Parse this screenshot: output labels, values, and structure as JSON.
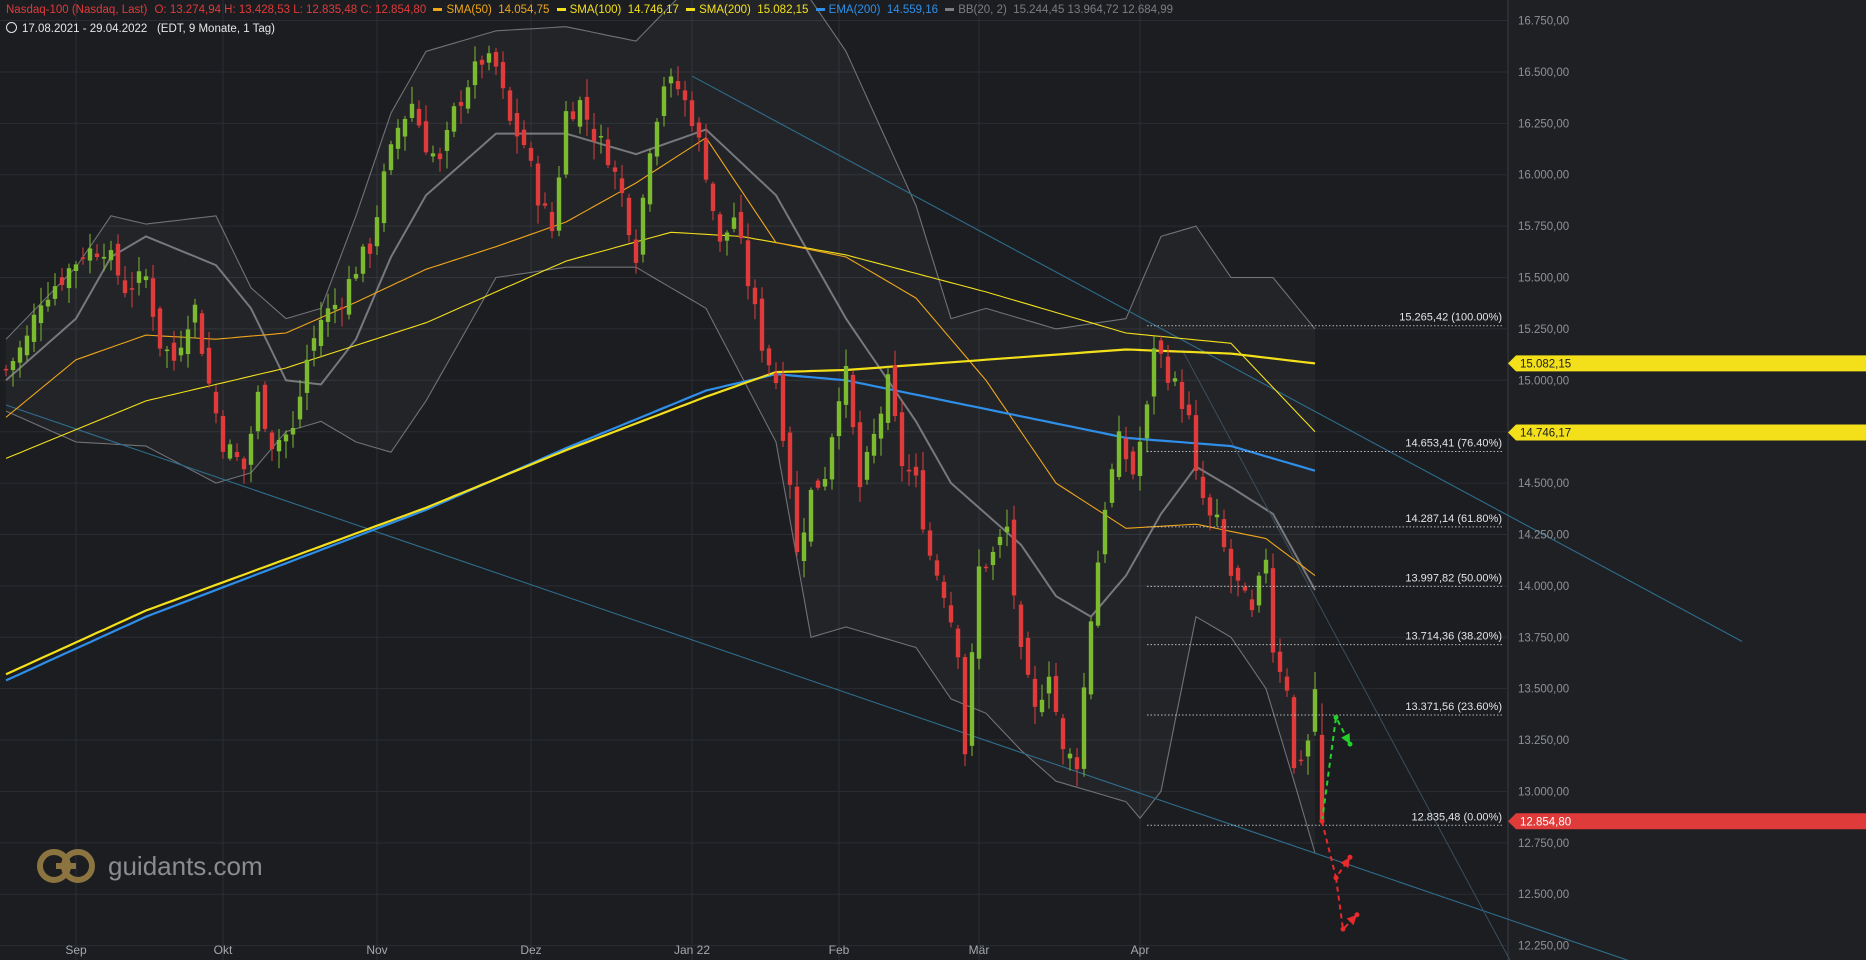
{
  "colors": {
    "bg": "#1b1d21",
    "grid": "#2a2d33",
    "up": "#7cba2f",
    "down": "#e03b3b",
    "sma50": "#f0a61a",
    "sma100": "#f3e01b",
    "sma200": "#f3e01b",
    "ema200": "#2f8fe8",
    "bb": "#8b8d92",
    "trend": "#2f6d8c",
    "fib": "#cfd2d6"
  },
  "legend": {
    "instrument": "Nasdaq-100 (Nasdaq, Last)",
    "ohlc": "O: 13.274,94   H: 13.428,53   L: 12.835,48   C: 12.854,80",
    "sma50_label": "SMA(50)",
    "sma50_value": "14.054,75",
    "sma100_label": "SMA(100)",
    "sma100_value": "14.746,17",
    "sma200_label": "SMA(200)",
    "sma200_value": "15.082,15",
    "ema200_label": "EMA(200)",
    "ema200_value": "14.559,16",
    "bb_label": "BB(20, 2)",
    "bb_values": "15.244,45   13.964,72   12.684,99"
  },
  "range": {
    "dates": "17.08.2021 - 29.04.2022",
    "info": "(EDT, 9 Monate, 1 Tag)"
  },
  "logo": {
    "text": "guidants.com"
  },
  "chart_data": {
    "type": "candlestick",
    "title": "",
    "y_ticks": [
      16750,
      16500,
      16250,
      16000,
      15750,
      15500,
      15250,
      15000,
      14750,
      14500,
      14250,
      14000,
      13750,
      13500,
      13250,
      13000,
      12750,
      12500,
      12250
    ],
    "y_tick_labels": [
      "16.750,00",
      "16.500,00",
      "16.250,00",
      "16.000,00",
      "15.750,00",
      "15.500,00",
      "15.250,00",
      "15.000,00",
      "14.750,00",
      "14.500,00",
      "14.250,00",
      "14.000,00",
      "13.750,00",
      "13.500,00",
      "13.250,00",
      "13.000,00",
      "12.750,00",
      "12.500,00",
      "12.250,00"
    ],
    "ylim": [
      12180,
      16850
    ],
    "x_labels": [
      {
        "label": "Sep",
        "day": 10
      },
      {
        "label": "Okt",
        "day": 31
      },
      {
        "label": "Nov",
        "day": 53
      },
      {
        "label": "Dez",
        "day": 75
      },
      {
        "label": "Jan 22",
        "day": 98
      },
      {
        "label": "Feb",
        "day": 119
      },
      {
        "label": "Mär",
        "day": 139
      },
      {
        "label": "Apr",
        "day": 162
      }
    ],
    "close_path": [
      [
        0,
        15050
      ],
      [
        3,
        15200
      ],
      [
        5,
        15400
      ],
      [
        8,
        15500
      ],
      [
        11,
        15620
      ],
      [
        14,
        15650
      ],
      [
        17,
        15450
      ],
      [
        20,
        15500
      ],
      [
        22,
        15180
      ],
      [
        24,
        15100
      ],
      [
        26,
        15300
      ],
      [
        27,
        15350
      ],
      [
        29,
        14980
      ],
      [
        31,
        14700
      ],
      [
        34,
        14570
      ],
      [
        36,
        14920
      ],
      [
        38,
        14700
      ],
      [
        41,
        14750
      ],
      [
        43,
        15100
      ],
      [
        45,
        15300
      ],
      [
        48,
        15400
      ],
      [
        50,
        15550
      ],
      [
        52,
        15650
      ],
      [
        54,
        15980
      ],
      [
        56,
        16230
      ],
      [
        58,
        16350
      ],
      [
        60,
        16150
      ],
      [
        62,
        16050
      ],
      [
        64,
        16300
      ],
      [
        66,
        16450
      ],
      [
        68,
        16560
      ],
      [
        70,
        16520
      ],
      [
        72,
        16250
      ],
      [
        74,
        16150
      ],
      [
        76,
        15900
      ],
      [
        78,
        15730
      ],
      [
        80,
        16300
      ],
      [
        82,
        16350
      ],
      [
        84,
        16200
      ],
      [
        86,
        16100
      ],
      [
        88,
        15900
      ],
      [
        90,
        15620
      ],
      [
        92,
        16150
      ],
      [
        94,
        16450
      ],
      [
        96,
        16420
      ],
      [
        98,
        16280
      ],
      [
        100,
        16020
      ],
      [
        102,
        15650
      ],
      [
        104,
        15800
      ],
      [
        106,
        15480
      ],
      [
        108,
        15180
      ],
      [
        110,
        15000
      ],
      [
        112,
        14520
      ],
      [
        113,
        14150
      ],
      [
        115,
        14450
      ],
      [
        117,
        14550
      ],
      [
        119,
        14950
      ],
      [
        120,
        15020
      ],
      [
        122,
        14480
      ],
      [
        124,
        14720
      ],
      [
        126,
        14980
      ],
      [
        128,
        14600
      ],
      [
        130,
        14500
      ],
      [
        132,
        14150
      ],
      [
        134,
        13980
      ],
      [
        136,
        13700
      ],
      [
        137,
        13200
      ],
      [
        139,
        14080
      ],
      [
        141,
        14150
      ],
      [
        143,
        14280
      ],
      [
        145,
        13650
      ],
      [
        147,
        13380
      ],
      [
        149,
        13600
      ],
      [
        151,
        13180
      ],
      [
        153,
        13150
      ],
      [
        155,
        13850
      ],
      [
        157,
        14400
      ],
      [
        159,
        14700
      ],
      [
        161,
        14550
      ],
      [
        163,
        14850
      ],
      [
        164,
        15180
      ],
      [
        166,
        15040
      ],
      [
        168,
        14900
      ],
      [
        169,
        14800
      ],
      [
        170,
        14520
      ],
      [
        172,
        14320
      ],
      [
        173,
        14300
      ],
      [
        175,
        14050
      ],
      [
        176,
        14000
      ],
      [
        178,
        13850
      ],
      [
        180,
        14150
      ],
      [
        181,
        13700
      ],
      [
        183,
        13520
      ],
      [
        184,
        13100
      ],
      [
        186,
        13250
      ],
      [
        187,
        13500
      ],
      [
        188,
        12854
      ]
    ],
    "sma50": [
      [
        0,
        14820
      ],
      [
        10,
        15100
      ],
      [
        20,
        15220
      ],
      [
        30,
        15200
      ],
      [
        40,
        15230
      ],
      [
        50,
        15380
      ],
      [
        60,
        15540
      ],
      [
        70,
        15650
      ],
      [
        80,
        15770
      ],
      [
        90,
        15960
      ],
      [
        100,
        16180
      ],
      [
        110,
        15670
      ],
      [
        120,
        15600
      ],
      [
        130,
        15400
      ],
      [
        140,
        15000
      ],
      [
        150,
        14500
      ],
      [
        160,
        14280
      ],
      [
        170,
        14300
      ],
      [
        180,
        14230
      ],
      [
        187,
        14050
      ]
    ],
    "sma100": [
      [
        0,
        14620
      ],
      [
        20,
        14900
      ],
      [
        40,
        15060
      ],
      [
        60,
        15280
      ],
      [
        80,
        15580
      ],
      [
        95,
        15720
      ],
      [
        105,
        15700
      ],
      [
        120,
        15610
      ],
      [
        140,
        15430
      ],
      [
        160,
        15230
      ],
      [
        175,
        15180
      ],
      [
        187,
        14750
      ]
    ],
    "sma200": [
      [
        0,
        13570
      ],
      [
        20,
        13880
      ],
      [
        40,
        14130
      ],
      [
        60,
        14380
      ],
      [
        80,
        14660
      ],
      [
        100,
        14920
      ],
      [
        110,
        15040
      ],
      [
        120,
        15050
      ],
      [
        140,
        15100
      ],
      [
        160,
        15150
      ],
      [
        175,
        15130
      ],
      [
        187,
        15082
      ]
    ],
    "ema200": [
      [
        0,
        13540
      ],
      [
        20,
        13850
      ],
      [
        40,
        14110
      ],
      [
        60,
        14370
      ],
      [
        80,
        14670
      ],
      [
        100,
        14950
      ],
      [
        110,
        15030
      ],
      [
        120,
        15000
      ],
      [
        140,
        14860
      ],
      [
        160,
        14720
      ],
      [
        175,
        14680
      ],
      [
        187,
        14560
      ]
    ],
    "bb_upper": [
      [
        0,
        15200
      ],
      [
        10,
        15550
      ],
      [
        15,
        15800
      ],
      [
        20,
        15760
      ],
      [
        30,
        15800
      ],
      [
        35,
        15450
      ],
      [
        40,
        15300
      ],
      [
        45,
        15350
      ],
      [
        50,
        15800
      ],
      [
        55,
        16300
      ],
      [
        60,
        16600
      ],
      [
        70,
        16700
      ],
      [
        80,
        16720
      ],
      [
        90,
        16650
      ],
      [
        100,
        17000
      ],
      [
        110,
        17100
      ],
      [
        120,
        16600
      ],
      [
        130,
        15850
      ],
      [
        135,
        15300
      ],
      [
        140,
        15350
      ],
      [
        150,
        15250
      ],
      [
        160,
        15300
      ],
      [
        165,
        15700
      ],
      [
        170,
        15750
      ],
      [
        175,
        15500
      ],
      [
        181,
        15500
      ],
      [
        187,
        15250
      ]
    ],
    "bb_middle": [
      [
        0,
        15000
      ],
      [
        10,
        15300
      ],
      [
        15,
        15600
      ],
      [
        20,
        15700
      ],
      [
        30,
        15560
      ],
      [
        35,
        15350
      ],
      [
        40,
        15000
      ],
      [
        45,
        14980
      ],
      [
        50,
        15200
      ],
      [
        55,
        15600
      ],
      [
        60,
        15900
      ],
      [
        70,
        16200
      ],
      [
        80,
        16200
      ],
      [
        90,
        16100
      ],
      [
        100,
        16220
      ],
      [
        110,
        15900
      ],
      [
        120,
        15300
      ],
      [
        130,
        14800
      ],
      [
        135,
        14500
      ],
      [
        140,
        14350
      ],
      [
        145,
        14200
      ],
      [
        150,
        13950
      ],
      [
        155,
        13850
      ],
      [
        160,
        14050
      ],
      [
        165,
        14350
      ],
      [
        170,
        14580
      ],
      [
        175,
        14480
      ],
      [
        181,
        14350
      ],
      [
        187,
        13980
      ]
    ],
    "bb_lower": [
      [
        0,
        14850
      ],
      [
        10,
        14700
      ],
      [
        20,
        14680
      ],
      [
        30,
        14500
      ],
      [
        35,
        14550
      ],
      [
        40,
        14750
      ],
      [
        45,
        14800
      ],
      [
        50,
        14700
      ],
      [
        55,
        14650
      ],
      [
        60,
        14900
      ],
      [
        70,
        15500
      ],
      [
        80,
        15550
      ],
      [
        90,
        15550
      ],
      [
        100,
        15350
      ],
      [
        110,
        14700
      ],
      [
        115,
        13750
      ],
      [
        120,
        13800
      ],
      [
        130,
        13700
      ],
      [
        135,
        13450
      ],
      [
        140,
        13380
      ],
      [
        145,
        13200
      ],
      [
        150,
        13050
      ],
      [
        155,
        13000
      ],
      [
        160,
        12950
      ],
      [
        162,
        12870
      ],
      [
        165,
        13000
      ],
      [
        170,
        13850
      ],
      [
        175,
        13750
      ],
      [
        180,
        13500
      ],
      [
        184,
        13050
      ],
      [
        187,
        12700
      ]
    ],
    "fib_levels": [
      {
        "label": "15.265,42 (100.00%)",
        "value": 15265.42
      },
      {
        "label": "14.653,41 (76.40%)",
        "value": 14653.41
      },
      {
        "label": "14.287,14 (61.80%)",
        "value": 14287.14
      },
      {
        "label": "13.997,82 (50.00%)",
        "value": 13997.82
      },
      {
        "label": "13.714,36 (38.20%)",
        "value": 13714.36
      },
      {
        "label": "13.371,56 (23.60%)",
        "value": 13371.56
      },
      {
        "label": "12.835,48 (0.00%)",
        "value": 12835.48
      }
    ],
    "fib_start_day": 163,
    "price_tags": [
      {
        "label": "15.082,15",
        "value": 15082.15,
        "color": "#f3e01b",
        "text": "#1b1d21"
      },
      {
        "label": "14.746,17",
        "value": 14746.17,
        "color": "#f3e01b",
        "text": "#1b1d21"
      },
      {
        "label": "12.854,80",
        "value": 12854.8,
        "color": "#e03b3b",
        "text": "#ffffff"
      }
    ],
    "trendlines": [
      {
        "from": [
          0,
          14880
        ],
        "to": [
          235,
          12140
        ]
      },
      {
        "from": [
          98,
          16480
        ],
        "to": [
          248,
          13730
        ]
      }
    ],
    "projection_up": [
      [
        188,
        12855
      ],
      [
        190,
        13360
      ],
      [
        192,
        13230
      ]
    ],
    "projection_down": [
      [
        188,
        12855
      ],
      [
        190,
        12580
      ],
      [
        191,
        12380
      ],
      [
        193,
        12280
      ]
    ],
    "last_close": 12854.8
  }
}
